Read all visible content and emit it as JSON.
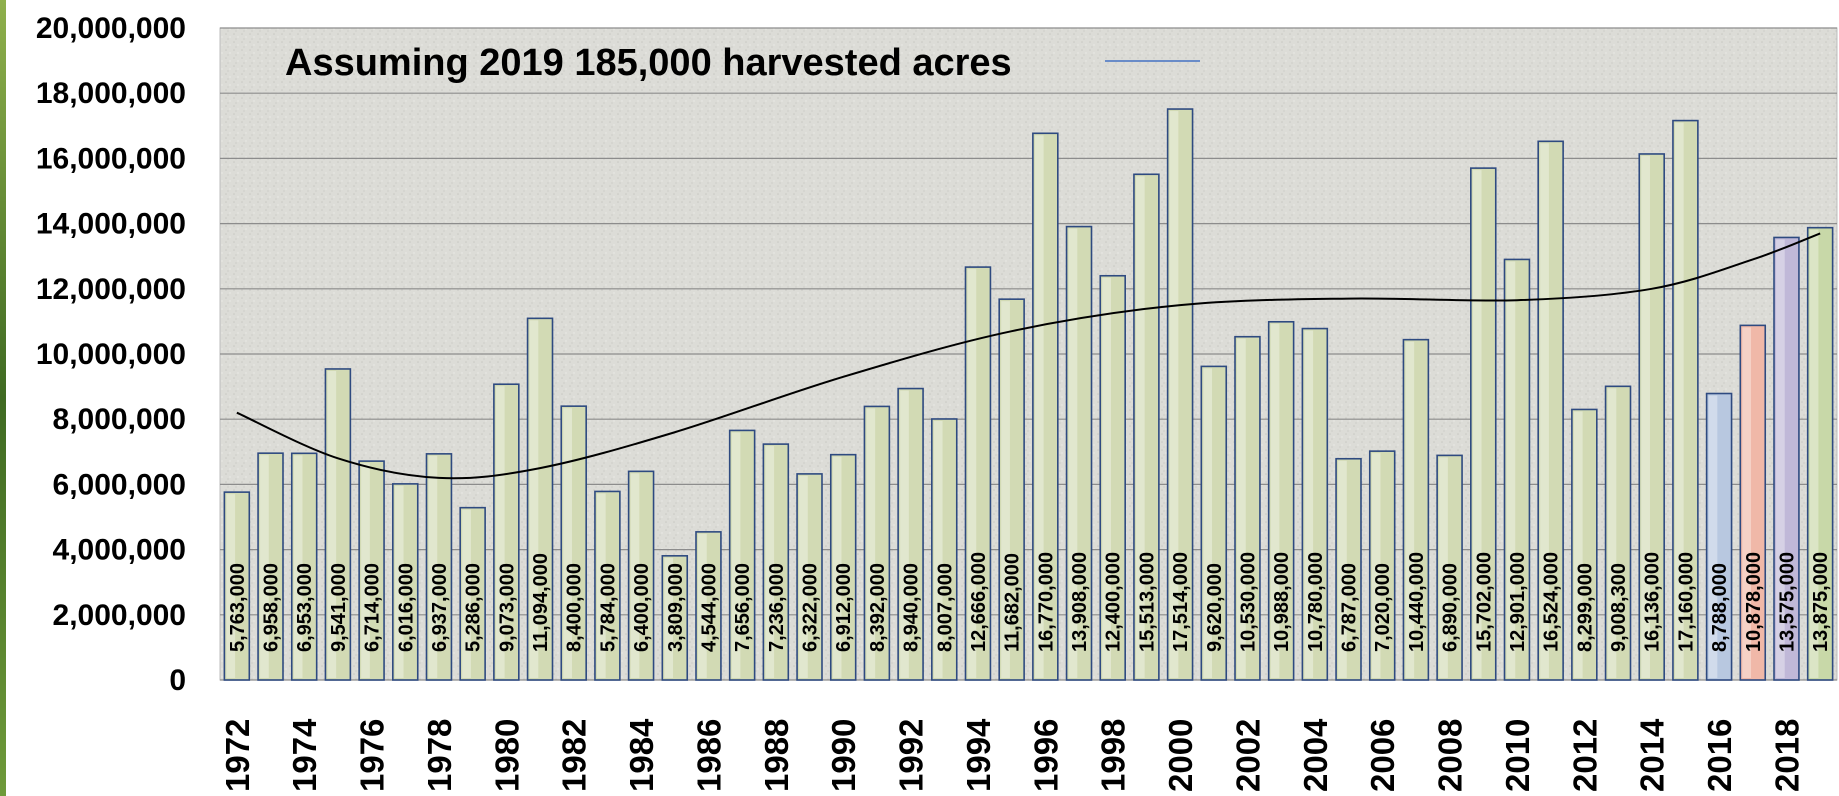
{
  "chart_data": {
    "type": "bar",
    "legend": {
      "label": "Assuming 2019 185,000 harvested acres",
      "placement": "top-left"
    },
    "categories": [
      "1972",
      "1973",
      "1974",
      "1975",
      "1976",
      "1977",
      "1978",
      "1979",
      "1980",
      "1981",
      "1982",
      "1983",
      "1984",
      "1985",
      "1986",
      "1987",
      "1988",
      "1989",
      "1990",
      "1991",
      "1992",
      "1993",
      "1994",
      "1995",
      "1996",
      "1997",
      "1998",
      "1999",
      "2000",
      "2001",
      "2002",
      "2003",
      "2004",
      "2005",
      "2006",
      "2007",
      "2008",
      "2009",
      "2010",
      "2011",
      "2012",
      "2013",
      "2014",
      "2015",
      "2016",
      "2017",
      "2018",
      "2019"
    ],
    "x_tick_labels": [
      "1972",
      "1974",
      "1976",
      "1978",
      "1980",
      "1982",
      "1984",
      "1986",
      "1988",
      "1990",
      "1992",
      "1994",
      "1996",
      "1998",
      "2000",
      "2002",
      "2004",
      "2006",
      "2008",
      "2010",
      "2012",
      "2014",
      "2016",
      "2018"
    ],
    "values": [
      5763000,
      6958000,
      6953000,
      9541000,
      6714000,
      6016000,
      6937000,
      5286000,
      9073000,
      11094000,
      8400000,
      5784000,
      6400000,
      3809000,
      4544000,
      7656000,
      7236000,
      6322000,
      6912000,
      8392000,
      8940000,
      8007000,
      12666000,
      11682000,
      16770000,
      13908000,
      12400000,
      15513000,
      17514000,
      9620000,
      10530000,
      10988000,
      10780000,
      6787000,
      7020000,
      10440000,
      6890000,
      15702000,
      12901000,
      16524000,
      8299000,
      9008300,
      16136000,
      17160000,
      8788000,
      10878000,
      13575000,
      13875000
    ],
    "data_labels": [
      "5,763,000",
      "6,958,000",
      "6,953,000",
      "9,541,000",
      "6,714,000",
      "6,016,000",
      "6,937,000",
      "5,286,000",
      "9,073,000",
      "11,094,000",
      "8,400,000",
      "5,784,000",
      "6,400,000",
      "3,809,000",
      "4,544,000",
      "7,656,000",
      "7,236,000",
      "6,322,000",
      "6,912,000",
      "8,392,000",
      "8,940,000",
      "8,007,000",
      "12,666,000",
      "11,682,000",
      "16,770,000",
      "13,908,000",
      "12,400,000",
      "15,513,000",
      "17,514,000",
      "9,620,000",
      "10,530,000",
      "10,988,000",
      "10,780,000",
      "6,787,000",
      "7,020,000",
      "10,440,000",
      "6,890,000",
      "15,702,000",
      "12,901,000",
      "16,524,000",
      "8,299,000",
      "9,008,300",
      "16,136,000",
      "17,160,000",
      "8,788,000",
      "10,878,000",
      "13,575,000",
      "13,875,000"
    ],
    "y_tick_labels": [
      "0",
      "2,000,000",
      "4,000,000",
      "6,000,000",
      "8,000,000",
      "10,000,000",
      "12,000,000",
      "14,000,000",
      "16,000,000",
      "18,000,000",
      "20,000,000"
    ],
    "ylim": [
      0,
      20000000
    ],
    "grid": true,
    "trendline": {
      "type": "polynomial",
      "points": [
        {
          "x": "1972",
          "y": 8200000
        },
        {
          "x": "1975",
          "y": 6800000
        },
        {
          "x": "1978",
          "y": 6200000
        },
        {
          "x": "1981",
          "y": 6500000
        },
        {
          "x": "1985",
          "y": 7600000
        },
        {
          "x": "1990",
          "y": 9300000
        },
        {
          "x": "1995",
          "y": 10700000
        },
        {
          "x": "2000",
          "y": 11500000
        },
        {
          "x": "2005",
          "y": 11700000
        },
        {
          "x": "2010",
          "y": 11650000
        },
        {
          "x": "2014",
          "y": 12000000
        },
        {
          "x": "2017",
          "y": 12900000
        },
        {
          "x": "2019",
          "y": 13700000
        }
      ]
    },
    "colors": {
      "bar_default": "#d2dab4",
      "bar_2016": "#b8c8e0",
      "bar_2017": "#f0b8a8",
      "bar_2018": "#c0b8d8",
      "bar_2019": "#c8d8a8",
      "bar_outline": "#2e4a80",
      "gridline": "#8c8c8c",
      "trendline": "#000000",
      "legend_line": "#4472c4",
      "plot_background": "#dcdcd8",
      "left_edge": "#4c7a2c"
    }
  }
}
